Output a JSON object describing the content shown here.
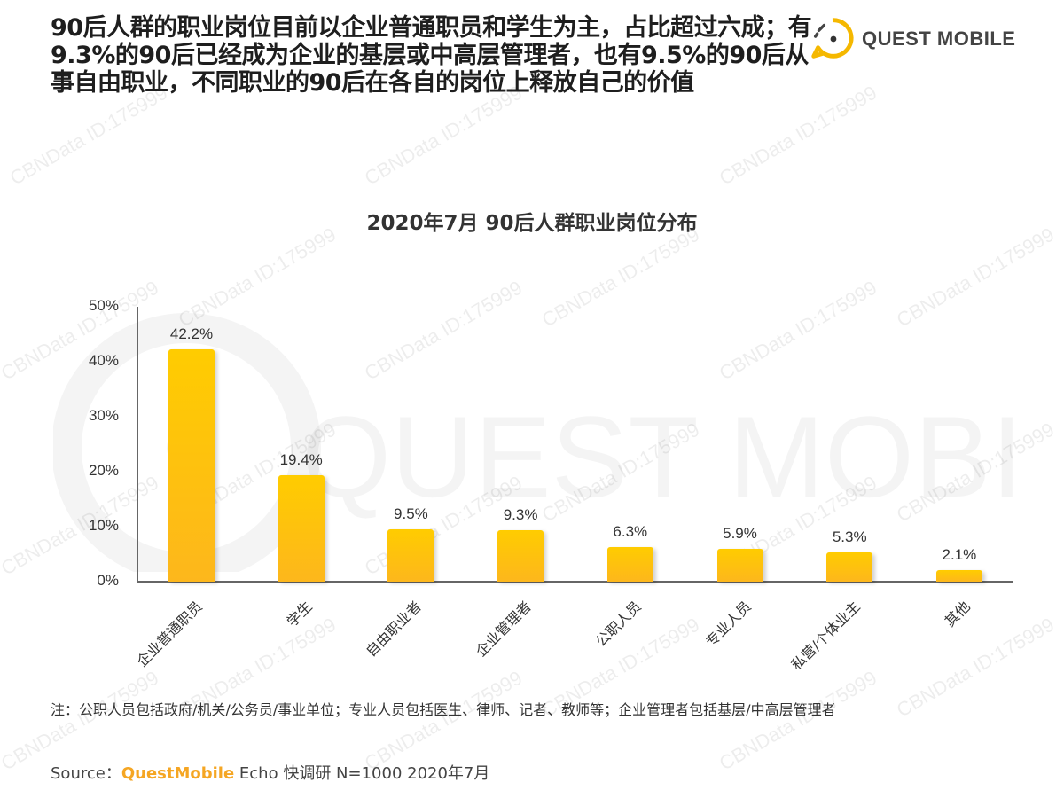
{
  "header": {
    "headline": "90后人群的职业岗位目前以企业普通职员和学生为主，占比超过六成；有9.3%的90后已经成为企业的基层或中高层管理者，也有9.5%的90后从事自由职业，不同职业的90后在各自的岗位上释放自己的价值",
    "logo_text": "QUEST MOBILE",
    "logo_icon": "quest-mobile-logo-icon",
    "brand_color": "#f5b800"
  },
  "watermark": {
    "text": "CBNData ID:175999",
    "big_text": "QUEST MOBILE"
  },
  "chart_data": {
    "type": "bar",
    "title": "2020年7月 90后人群职业岗位分布",
    "xlabel": "",
    "ylabel": "",
    "ylim": [
      0,
      50
    ],
    "yticks": [
      "0%",
      "10%",
      "20%",
      "30%",
      "40%",
      "50%"
    ],
    "grid": false,
    "legend": null,
    "categories": [
      "企业普通职员",
      "学生",
      "自由职业者",
      "企业管理者",
      "公职人员",
      "专业人员",
      "私营/个体业主",
      "其他"
    ],
    "values": [
      42.2,
      19.4,
      9.5,
      9.3,
      6.3,
      5.9,
      5.3,
      2.1
    ],
    "value_labels": [
      "42.2%",
      "19.4%",
      "9.5%",
      "9.3%",
      "6.3%",
      "5.9%",
      "5.3%",
      "2.1%"
    ],
    "bar_color": "#ffc20e",
    "unit": "%"
  },
  "footer": {
    "note": "注：公职人员包括政府/机关/公务员/事业单位；专业人员包括医生、律师、记者、教师等；企业管理者包括基层/中高层管理者",
    "source_prefix": "Source：",
    "source_brand": "QuestMobile",
    "source_rest": " Echo 快调研 N=1000 2020年7月"
  }
}
